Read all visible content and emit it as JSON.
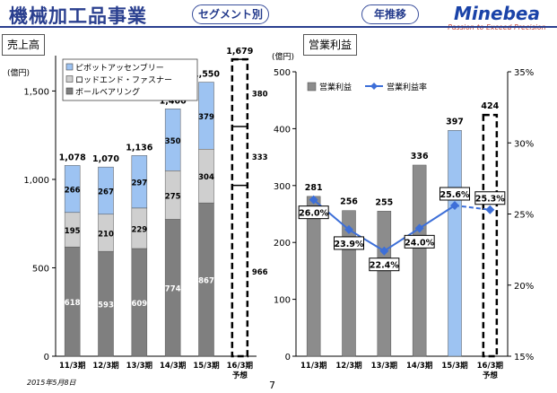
{
  "header": {
    "title": "機械加工品事業",
    "segment_pill": "セグメント別",
    "year_pill": "年推移",
    "brand": "Minebea",
    "tagline": "Passion to Exceed Precision"
  },
  "footer": {
    "date": "2015年5月8日",
    "page": "7"
  },
  "chart_data": [
    {
      "type": "bar",
      "title": "売上高",
      "ylabel": "(億円)",
      "ylim": [
        0,
        1700
      ],
      "yticks": [
        0,
        500,
        1000,
        1500
      ],
      "ytick_labels": [
        "0",
        "500",
        "1,000",
        "1,500"
      ],
      "categories": [
        "11/3期",
        "12/3期",
        "13/3期",
        "14/3期",
        "15/3期",
        "16/3期"
      ],
      "forecast_label": "予想",
      "series": [
        {
          "name": "ボールベアリング",
          "color": "#7f7f7f",
          "values": [
            618,
            593,
            609,
            774,
            867,
            966
          ]
        },
        {
          "name": "ロッドエンド・ファスナー",
          "color": "#cfcfcf",
          "values": [
            195,
            210,
            229,
            275,
            304,
            333
          ]
        },
        {
          "name": "ピボットアッセンブリー",
          "color": "#9dc3f2",
          "values": [
            266,
            267,
            297,
            350,
            379,
            380
          ]
        }
      ],
      "totals": [
        "1,078",
        "1,070",
        "1,136",
        "1,400",
        "1,550",
        "1,679"
      ],
      "forecast_index": 5
    },
    {
      "type": "bar",
      "title": "営業利益",
      "ylabel": "(億円)",
      "ylim": [
        0,
        500
      ],
      "yticks": [
        0,
        100,
        200,
        300,
        400,
        500
      ],
      "y2lim": [
        15,
        35
      ],
      "y2ticks": [
        "15%",
        "20%",
        "25%",
        "30%",
        "35%"
      ],
      "categories": [
        "11/3期",
        "12/3期",
        "13/3期",
        "14/3期",
        "15/3期",
        "16/3期"
      ],
      "forecast_label": "予想",
      "legend": [
        "営業利益",
        "営業利益率"
      ],
      "bars": {
        "name": "営業利益",
        "values": [
          281,
          256,
          255,
          336,
          397,
          424
        ],
        "color": "#8c8c8c",
        "highlight_color": "#9dc3f2"
      },
      "line": {
        "name": "営業利益率",
        "values": [
          26.0,
          23.9,
          22.4,
          24.0,
          25.6,
          25.3
        ],
        "labels": [
          "26.0%",
          "23.9%",
          "22.4%",
          "24.0%",
          "25.6%",
          "25.3%"
        ],
        "color": "#3d6fd8"
      },
      "forecast_index": 5
    }
  ]
}
